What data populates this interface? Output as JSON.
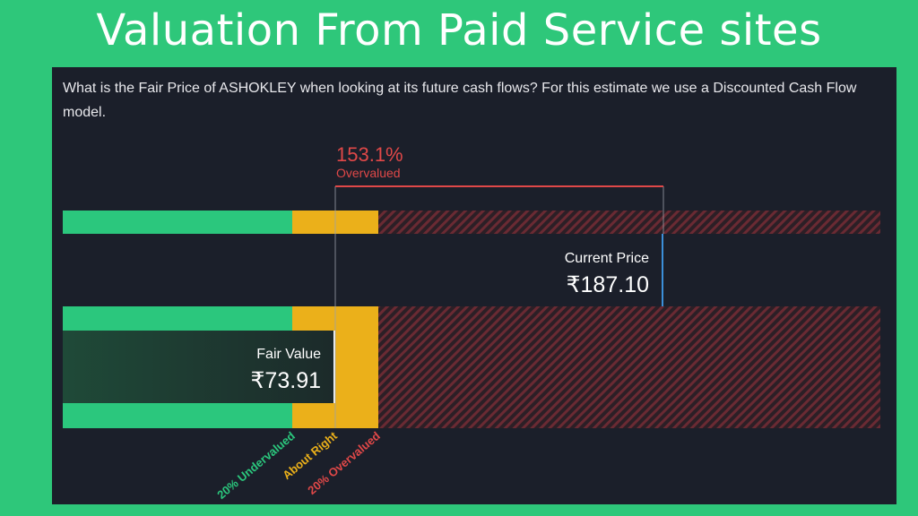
{
  "banner": {
    "title": "Valuation From Paid Service sites"
  },
  "panel": {
    "question": "What is the Fair Price of ASHOKLEY when looking at its future cash flows? For this estimate we use a Discounted Cash Flow model."
  },
  "chart_data": {
    "type": "bar",
    "title": "",
    "currency": "₹",
    "current_price": {
      "label": "Current Price",
      "value": 187.1,
      "display": "₹187.10"
    },
    "fair_value": {
      "label": "Fair Value",
      "value": 73.91,
      "display": "₹73.91"
    },
    "difference": {
      "percent": "153.1%",
      "status": "Overvalued"
    },
    "zones": [
      {
        "name": "20% Undervalued",
        "color": "#2bc77d"
      },
      {
        "name": "About Right",
        "color": "#ebb01a"
      },
      {
        "name": "20% Overvalued",
        "color": "#e04848"
      }
    ],
    "colors": {
      "undervalued": "#2bc77d",
      "about_right": "#ebb01a",
      "overvalued": "#e04848",
      "current_marker": "#3c8fd9",
      "fair_box": "#1d3a30",
      "panel_bg": "#1b1f2a"
    }
  }
}
